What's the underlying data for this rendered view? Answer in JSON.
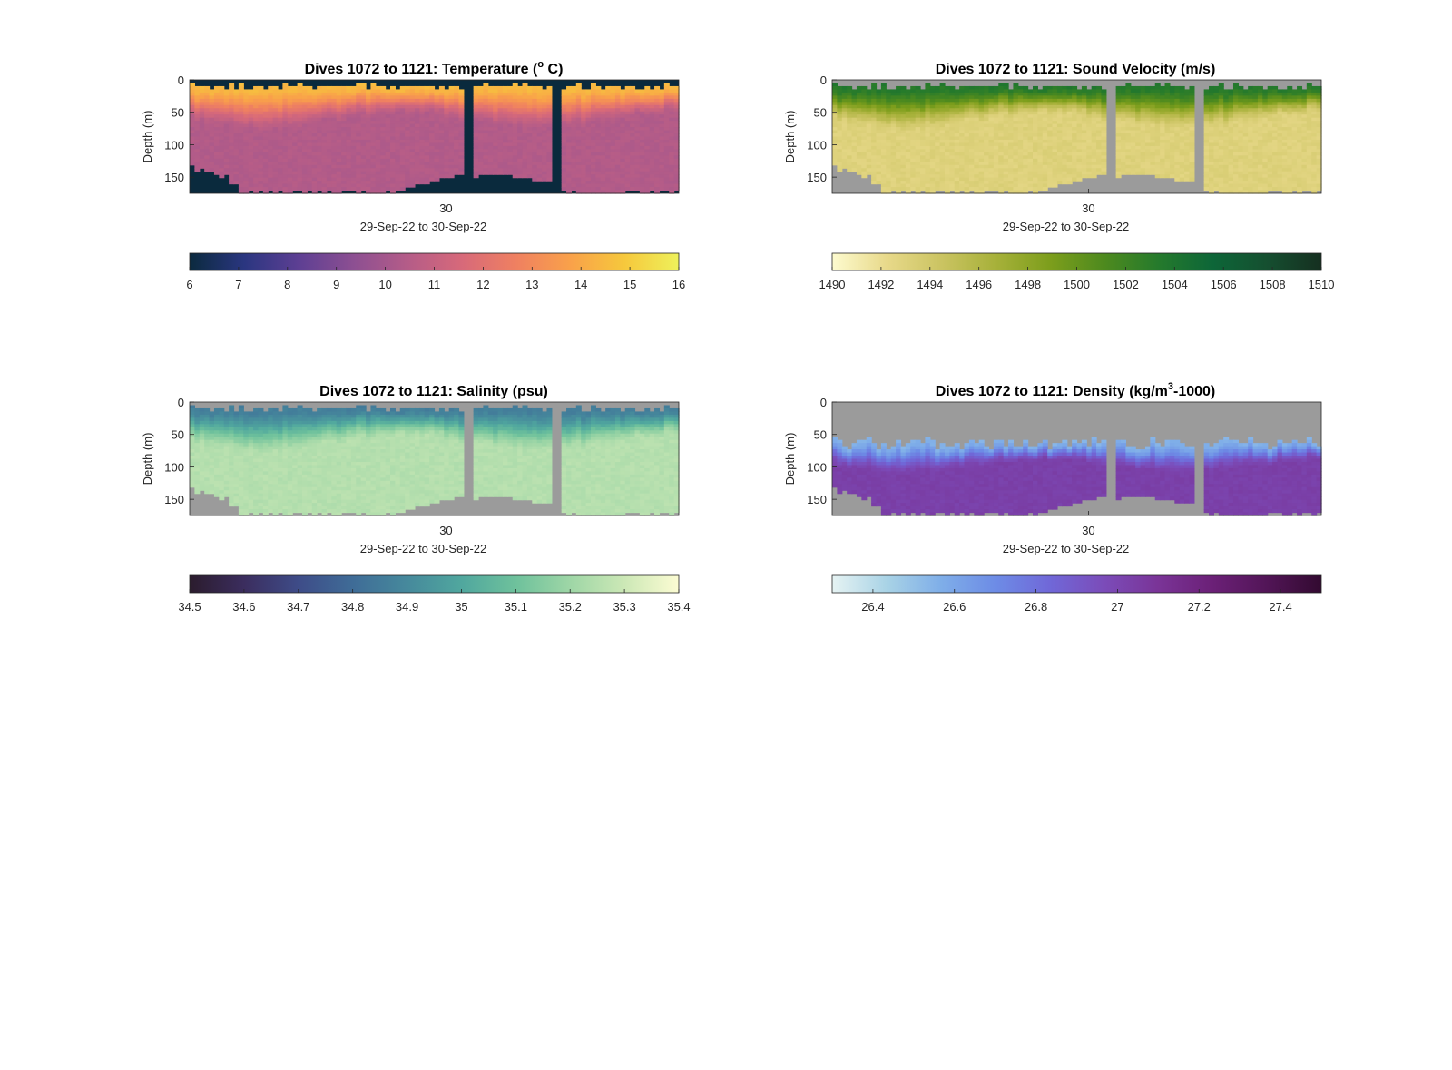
{
  "chart_data": [
    {
      "type": "heatmap",
      "title": "Dives 1072 to 1121: Temperature (° C)",
      "title_parts": {
        "prefix": "Dives 1072 to 1121: Temperature (",
        "sup": "o",
        "suffix": " C)"
      },
      "xlabel": "29-Sep-22 to 30-Sep-22",
      "ylabel": "Depth (m)",
      "x_tick_labels": [
        "30"
      ],
      "y_tick_labels": [
        "0",
        "50",
        "100",
        "150"
      ],
      "ylim": [
        0,
        175
      ],
      "y_reversed": true,
      "nodata_color": "#0a2a3d",
      "colorbar": {
        "range": [
          6,
          16
        ],
        "tick_labels": [
          "6",
          "7",
          "8",
          "9",
          "10",
          "11",
          "12",
          "13",
          "14",
          "15",
          "16"
        ],
        "colors": [
          "#0b2a3e",
          "#2a3680",
          "#5d3f93",
          "#8c4f92",
          "#b45c88",
          "#d7697a",
          "#ef8061",
          "#f9a14a",
          "#f6c83c",
          "#eef15b"
        ]
      },
      "profile": {
        "top_depth": [
          8,
          35
        ],
        "top_value": 14.5,
        "thermocline_depth": [
          40,
          80
        ],
        "deep_value": 10.4,
        "gap_columns": [
          56,
          57,
          74,
          75
        ]
      }
    },
    {
      "type": "heatmap",
      "title": "Dives 1072 to 1121: Sound Velocity (m/s)",
      "xlabel": "29-Sep-22 to 30-Sep-22",
      "ylabel": "Depth (m)",
      "x_tick_labels": [
        "30"
      ],
      "y_tick_labels": [
        "0",
        "50",
        "100",
        "150"
      ],
      "ylim": [
        0,
        175
      ],
      "y_reversed": true,
      "nodata_color": "#9b9b9b",
      "colorbar": {
        "range": [
          1490,
          1510
        ],
        "tick_labels": [
          "1490",
          "1492",
          "1494",
          "1496",
          "1498",
          "1500",
          "1502",
          "1504",
          "1506",
          "1508",
          "1510"
        ],
        "colors": [
          "#fdfbcf",
          "#e8d98a",
          "#cbc462",
          "#a7b13a",
          "#7d9e1c",
          "#4e8a1e",
          "#257a2c",
          "#0d6638",
          "#154f30",
          "#152f20"
        ]
      },
      "profile": {
        "top_depth": [
          8,
          35
        ],
        "top_value": 1503.5,
        "thermocline_depth": [
          40,
          80
        ],
        "deep_value": 1493.0,
        "gap_columns": [
          56,
          57,
          74,
          75
        ]
      }
    },
    {
      "type": "heatmap",
      "title": "Dives 1072 to 1121: Salinity (psu)",
      "xlabel": "29-Sep-22 to 30-Sep-22",
      "ylabel": "Depth (m)",
      "x_tick_labels": [
        "30"
      ],
      "y_tick_labels": [
        "0",
        "50",
        "100",
        "150"
      ],
      "ylim": [
        0,
        175
      ],
      "y_reversed": true,
      "nodata_color": "#9b9b9b",
      "colorbar": {
        "range": [
          34.5,
          35.4
        ],
        "tick_labels": [
          "34.5",
          "34.6",
          "34.7",
          "34.8",
          "34.9",
          "35",
          "35.1",
          "35.2",
          "35.3",
          "35.4"
        ],
        "colors": [
          "#2b1c2d",
          "#3b2d5e",
          "#3e4c88",
          "#3f6c97",
          "#46899c",
          "#50a79e",
          "#6ec19c",
          "#9ed6a6",
          "#cce8b6",
          "#fcfcd3"
        ]
      },
      "profile": {
        "top_depth": [
          8,
          35
        ],
        "top_value": 34.86,
        "thermocline_depth": [
          40,
          80
        ],
        "deep_value": 35.25,
        "gap_columns": [
          56,
          57,
          74,
          75
        ]
      }
    },
    {
      "type": "heatmap",
      "title": "Dives 1072 to 1121: Density (kg/m³-1000)",
      "title_parts": {
        "prefix": "Dives 1072 to 1121: Density (kg/m",
        "sup": "3",
        "suffix": "-1000)"
      },
      "xlabel": "29-Sep-22 to 30-Sep-22",
      "ylabel": "Depth (m)",
      "x_tick_labels": [
        "30"
      ],
      "y_tick_labels": [
        "0",
        "50",
        "100",
        "150"
      ],
      "ylim": [
        0,
        175
      ],
      "y_reversed": true,
      "nodata_color": "#9b9b9b",
      "colorbar": {
        "range": [
          26.3,
          27.5
        ],
        "tick_labels": [
          "26.4",
          "26.6",
          "26.8",
          "27",
          "27.2",
          "27.4"
        ],
        "colors": [
          "#e6f3f3",
          "#a9d3e6",
          "#7faee8",
          "#6d8ce6",
          "#7068d8",
          "#7b4cb9",
          "#7a3497",
          "#6b2077",
          "#521557",
          "#320a30"
        ]
      },
      "profile": {
        "top_depth": [
          50,
          75
        ],
        "top_value": 26.55,
        "thermocline_depth": [
          80,
          110
        ],
        "deep_value": 27.03,
        "gap_columns": [
          56,
          57,
          74,
          75
        ]
      }
    }
  ]
}
